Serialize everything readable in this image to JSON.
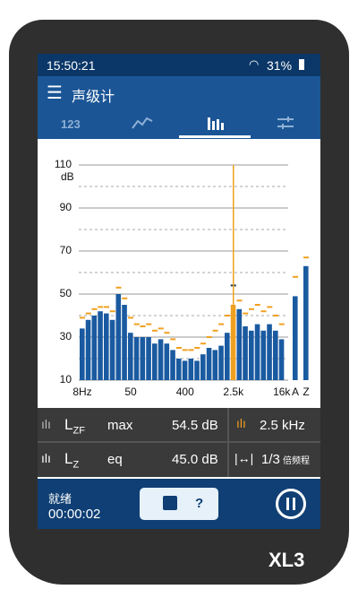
{
  "status": {
    "time": "15:50:21",
    "battery": "31%"
  },
  "header": {
    "title": "声级计",
    "tab": "123"
  },
  "chart_data": {
    "type": "bar",
    "y_unit": "dB",
    "categories": [
      "8Hz",
      null,
      null,
      null,
      null,
      null,
      null,
      null,
      "50",
      null,
      null,
      null,
      null,
      null,
      null,
      null,
      null,
      "400",
      null,
      null,
      null,
      null,
      null,
      null,
      null,
      "2.5k",
      null,
      null,
      null,
      null,
      null,
      null,
      null,
      "16k",
      "A",
      "Z"
    ],
    "series": [
      {
        "name": "eq",
        "color": "#1a5aa0",
        "values": [
          34,
          38,
          40,
          42,
          41,
          38,
          50,
          45,
          32,
          30,
          30,
          30,
          27,
          29,
          27,
          24,
          20,
          19,
          20,
          19,
          22,
          25,
          24,
          26,
          32,
          45,
          43,
          35,
          33,
          36,
          33,
          36,
          33,
          29,
          49,
          63
        ]
      },
      {
        "name": "max",
        "color": "#f0a020",
        "values": [
          39,
          41,
          43,
          44,
          44,
          42,
          53,
          48,
          39,
          36,
          35,
          36,
          33,
          34,
          32,
          29,
          25,
          24,
          24,
          25,
          27,
          30,
          33,
          36,
          40,
          54,
          47,
          41,
          43,
          45,
          42,
          44,
          40,
          36,
          58,
          67
        ]
      }
    ],
    "cursor": "2.5k",
    "cursor_color": "#f0a020",
    "ylim": [
      10,
      110
    ],
    "yticks": [
      10,
      30,
      50,
      70,
      90,
      110
    ],
    "minor_yticks": [
      20,
      40,
      60,
      80,
      100
    ],
    "grid": true
  },
  "readouts": {
    "row1": {
      "l": "L",
      "sub": "ZF",
      "kind": "max",
      "value": "54.5 dB",
      "freq": "2.5 kHz"
    },
    "row2": {
      "l": "L",
      "sub": "Z",
      "kind": "eq",
      "value": "45.0 dB",
      "band": "1/3",
      "band_unit": "倍频程"
    }
  },
  "footer": {
    "state": "就绪",
    "elapsed": "00:00:02",
    "help": "?"
  },
  "device": {
    "model": "XL3"
  }
}
